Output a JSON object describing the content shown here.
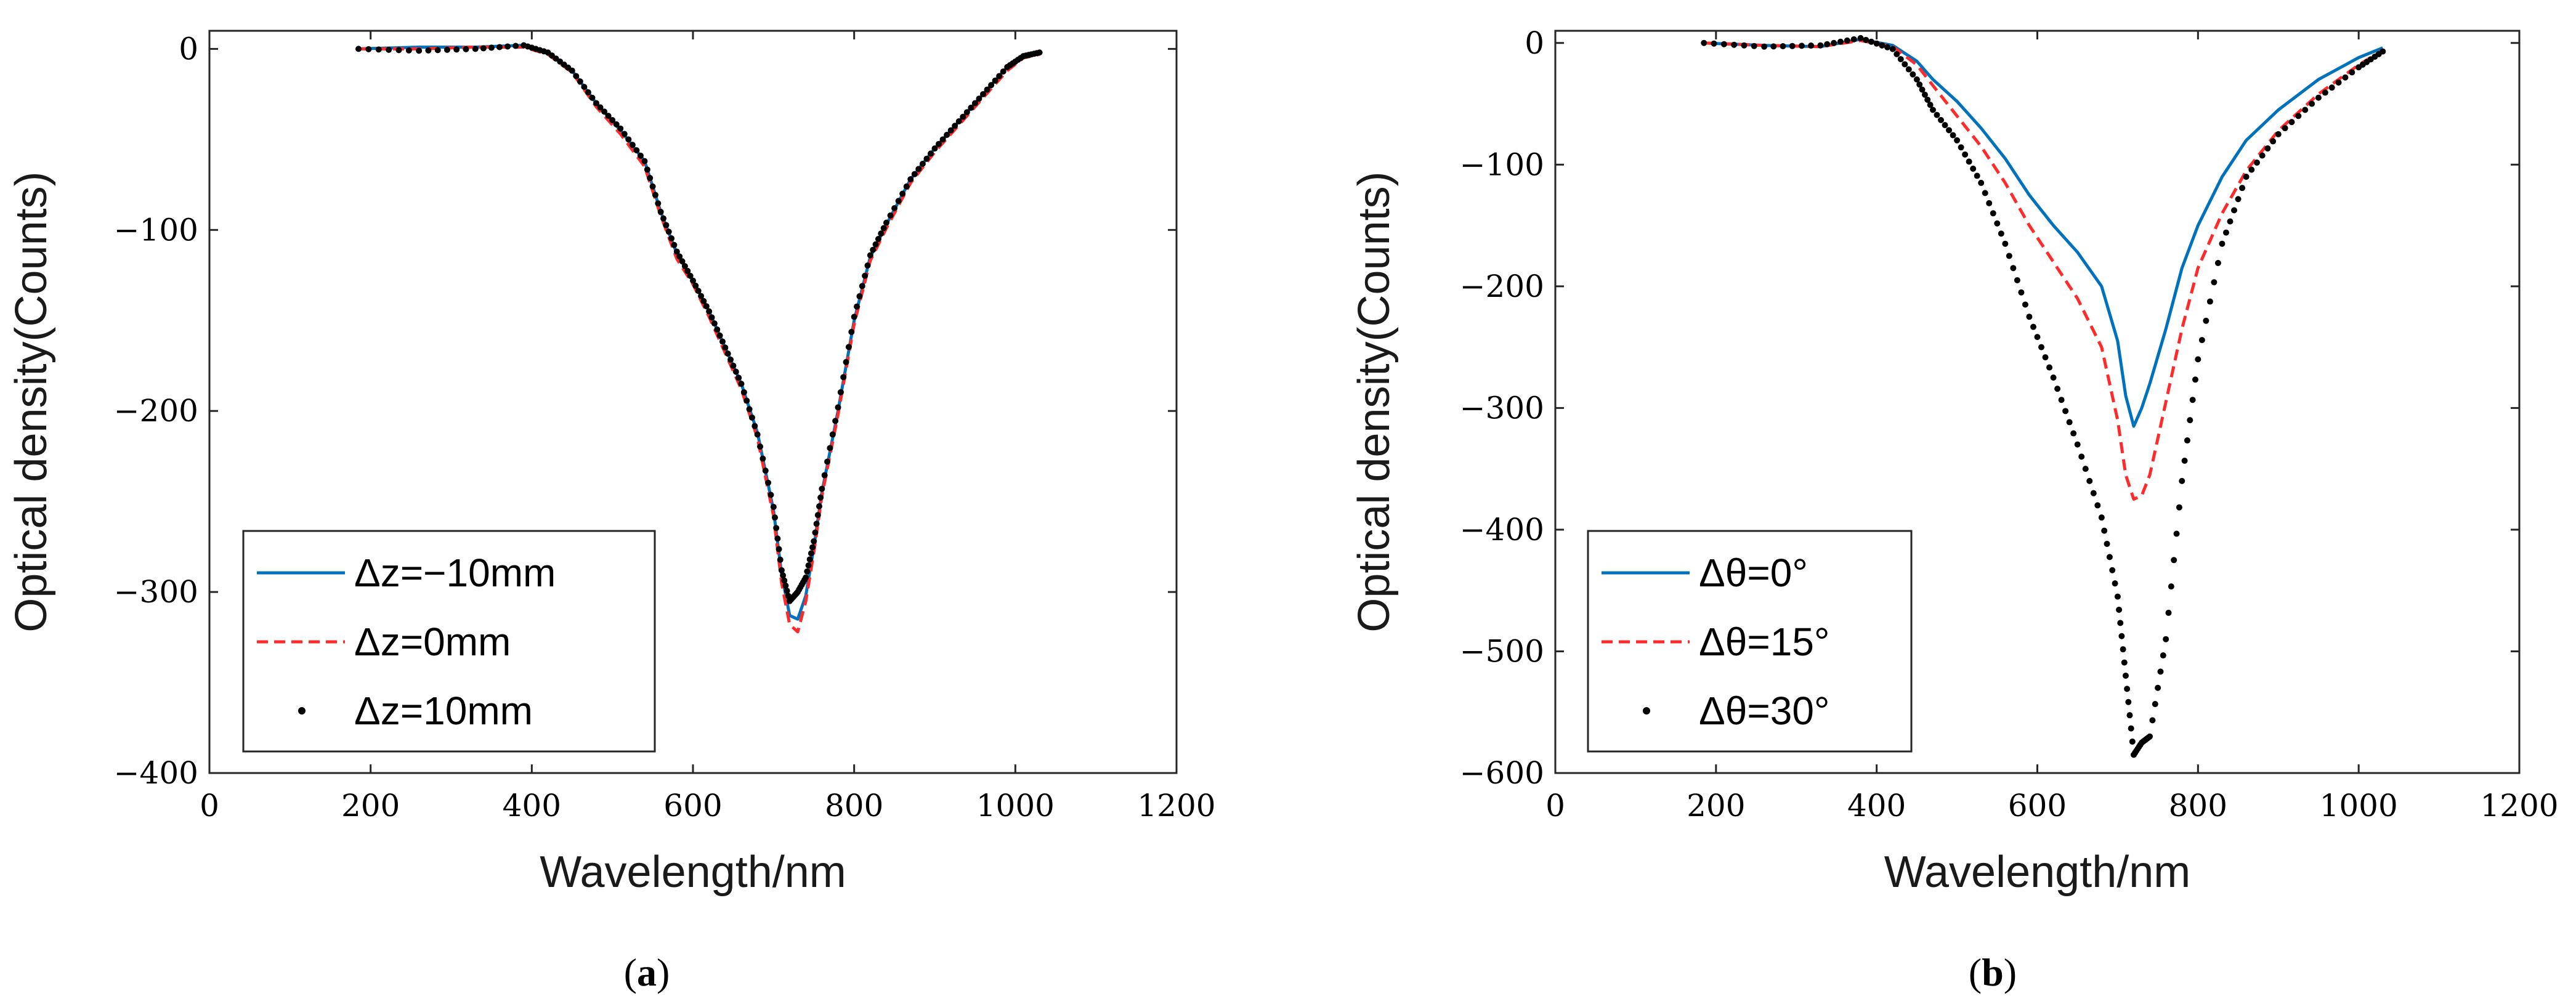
{
  "chart_data": [
    {
      "type": "line",
      "caption_open": "(",
      "caption_letter": "a",
      "caption_close": ")",
      "xlabel": "Wavelength/nm",
      "ylabel": "Optical density(Counts)",
      "xlim": [
        0,
        1200
      ],
      "ylim": [
        -400,
        10
      ],
      "xticks": [
        0,
        200,
        400,
        600,
        800,
        1000,
        1200
      ],
      "yticks": [
        0,
        -100,
        -200,
        -300,
        -400
      ],
      "xtick_labels": [
        "0",
        "200",
        "400",
        "600",
        "800",
        "1000",
        "1200"
      ],
      "ytick_labels": [
        "0",
        "−100",
        "−200",
        "−300",
        "−400"
      ],
      "legend_position": "bottom-left",
      "series": [
        {
          "name": "Δz=−10mm",
          "style": "solid",
          "color": "#0072BD",
          "x": [
            185,
            260,
            330,
            390,
            420,
            450,
            480,
            510,
            540,
            560,
            580,
            600,
            620,
            640,
            660,
            680,
            700,
            710,
            720,
            730,
            740,
            750,
            760,
            780,
            800,
            820,
            840,
            870,
            900,
            930,
            960,
            990,
            1010,
            1030
          ],
          "y": [
            0,
            1,
            1,
            2,
            -2,
            -12,
            -30,
            -45,
            -62,
            -90,
            -113,
            -128,
            -145,
            -165,
            -185,
            -212,
            -255,
            -290,
            -313,
            -315,
            -302,
            -275,
            -245,
            -200,
            -150,
            -115,
            -97,
            -72,
            -55,
            -40,
            -25,
            -10,
            -4,
            -2
          ]
        },
        {
          "name": "Δz=0mm",
          "style": "dashed",
          "color": "#FF2B2B",
          "x": [
            185,
            260,
            330,
            390,
            420,
            450,
            480,
            510,
            540,
            560,
            580,
            600,
            620,
            640,
            660,
            680,
            700,
            710,
            720,
            730,
            740,
            750,
            760,
            780,
            800,
            820,
            840,
            870,
            900,
            930,
            960,
            990,
            1010,
            1030
          ],
          "y": [
            0,
            0,
            1,
            1,
            -3,
            -13,
            -32,
            -47,
            -65,
            -92,
            -116,
            -130,
            -148,
            -168,
            -188,
            -215,
            -258,
            -295,
            -318,
            -322,
            -305,
            -278,
            -247,
            -202,
            -152,
            -117,
            -99,
            -74,
            -57,
            -42,
            -27,
            -12,
            -5,
            -3
          ]
        },
        {
          "name": "Δz=10mm",
          "style": "dots",
          "color": "#000000",
          "x": [
            185,
            260,
            330,
            390,
            420,
            450,
            480,
            510,
            540,
            560,
            580,
            600,
            620,
            640,
            660,
            680,
            700,
            710,
            720,
            730,
            740,
            750,
            760,
            780,
            800,
            820,
            840,
            870,
            900,
            930,
            960,
            990,
            1010,
            1030
          ],
          "y": [
            0,
            -1,
            0,
            2,
            -2,
            -12,
            -30,
            -44,
            -62,
            -90,
            -112,
            -128,
            -145,
            -165,
            -185,
            -213,
            -253,
            -288,
            -305,
            -300,
            -292,
            -272,
            -243,
            -198,
            -148,
            -114,
            -96,
            -72,
            -55,
            -40,
            -25,
            -10,
            -4,
            -2
          ]
        }
      ]
    },
    {
      "type": "line",
      "caption_open": "(",
      "caption_letter": "b",
      "caption_close": ")",
      "xlabel": "Wavelength/nm",
      "ylabel": "Optical density(Counts)",
      "xlim": [
        0,
        1200
      ],
      "ylim": [
        -600,
        10
      ],
      "xticks": [
        0,
        200,
        400,
        600,
        800,
        1000,
        1200
      ],
      "yticks": [
        0,
        -100,
        -200,
        -300,
        -400,
        -500,
        -600
      ],
      "xtick_labels": [
        "0",
        "200",
        "400",
        "600",
        "800",
        "1000",
        "1200"
      ],
      "ytick_labels": [
        "0",
        "−100",
        "−200",
        "−300",
        "−400",
        "−500",
        "−600"
      ],
      "legend_position": "bottom-left",
      "series": [
        {
          "name": "Δθ=0°",
          "style": "solid",
          "color": "#0072BD",
          "x": [
            185,
            260,
            330,
            380,
            420,
            450,
            470,
            500,
            530,
            560,
            590,
            620,
            650,
            680,
            700,
            710,
            720,
            730,
            740,
            760,
            780,
            800,
            830,
            860,
            900,
            950,
            1000,
            1030
          ],
          "y": [
            0,
            -2,
            -3,
            3,
            -2,
            -15,
            -30,
            -48,
            -70,
            -95,
            -125,
            -150,
            -172,
            -200,
            -245,
            -290,
            -315,
            -300,
            -280,
            -235,
            -185,
            -150,
            -110,
            -80,
            -55,
            -30,
            -12,
            -4
          ]
        },
        {
          "name": "Δθ=15°",
          "style": "dashed",
          "color": "#FF2B2B",
          "x": [
            185,
            260,
            330,
            380,
            420,
            450,
            470,
            500,
            530,
            560,
            590,
            620,
            650,
            680,
            700,
            710,
            720,
            730,
            740,
            760,
            780,
            800,
            830,
            860,
            900,
            950,
            1000,
            1030
          ],
          "y": [
            0,
            -2,
            -3,
            2,
            -3,
            -18,
            -35,
            -60,
            -85,
            -115,
            -150,
            -180,
            -210,
            -250,
            -310,
            -355,
            -375,
            -372,
            -355,
            -295,
            -235,
            -185,
            -140,
            -105,
            -72,
            -42,
            -18,
            -6
          ]
        },
        {
          "name": "Δθ=30°",
          "style": "dots",
          "color": "#000000",
          "x": [
            185,
            260,
            330,
            380,
            420,
            450,
            470,
            500,
            530,
            560,
            590,
            620,
            650,
            680,
            700,
            710,
            720,
            730,
            740,
            760,
            780,
            800,
            830,
            860,
            900,
            950,
            1000,
            1030
          ],
          "y": [
            0,
            -3,
            -2,
            4,
            -5,
            -30,
            -55,
            -80,
            -115,
            -165,
            -225,
            -275,
            -330,
            -390,
            -455,
            -520,
            -585,
            -575,
            -570,
            -490,
            -360,
            -260,
            -165,
            -110,
            -75,
            -45,
            -20,
            -7
          ]
        }
      ]
    }
  ]
}
